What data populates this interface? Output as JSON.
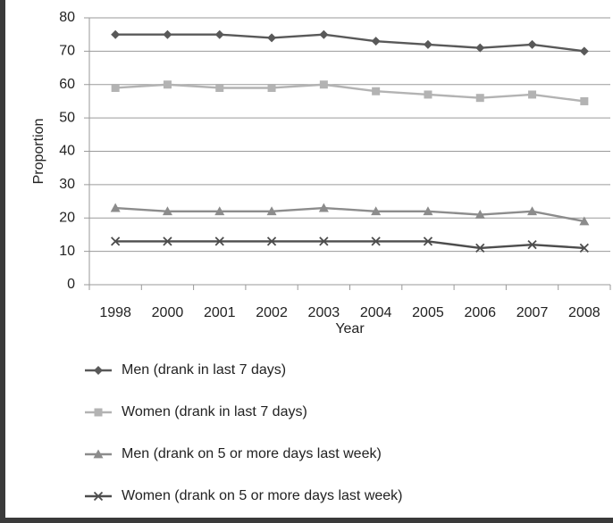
{
  "chart_data": {
    "type": "line",
    "categories": [
      "1998",
      "2000",
      "2001",
      "2002",
      "2003",
      "2004",
      "2005",
      "2006",
      "2007",
      "2008"
    ],
    "xlabel": "Year",
    "ylabel": "Proportion",
    "ylim": [
      0,
      80
    ],
    "yticks": [
      0,
      10,
      20,
      30,
      40,
      50,
      60,
      70,
      80
    ],
    "grid": "horizontal",
    "legend_position": "bottom",
    "series": [
      {
        "name": "Men (drank in last 7 days)",
        "marker": "diamond",
        "color": "#595959",
        "values": [
          75,
          75,
          75,
          74,
          75,
          73,
          72,
          71,
          72,
          70
        ]
      },
      {
        "name": "Women (drank in last 7 days)",
        "marker": "square",
        "color": "#b3b3b3",
        "values": [
          59,
          60,
          59,
          59,
          60,
          58,
          57,
          56,
          57,
          55
        ]
      },
      {
        "name": "Men (drank on 5 or more days last week)",
        "marker": "triangle",
        "color": "#8c8c8c",
        "values": [
          23,
          22,
          22,
          22,
          23,
          22,
          22,
          21,
          22,
          19
        ]
      },
      {
        "name": "Women (drank on 5 or more days last week)",
        "marker": "x",
        "color": "#4d4d4d",
        "values": [
          13,
          13,
          13,
          13,
          13,
          13,
          13,
          11,
          12,
          11
        ]
      }
    ]
  }
}
